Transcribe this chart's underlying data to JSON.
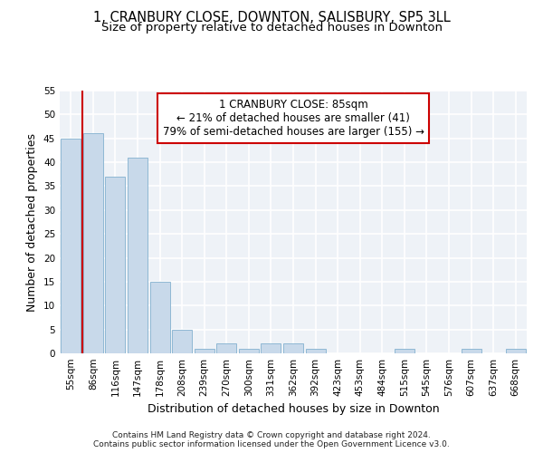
{
  "title": "1, CRANBURY CLOSE, DOWNTON, SALISBURY, SP5 3LL",
  "subtitle": "Size of property relative to detached houses in Downton",
  "xlabel": "Distribution of detached houses by size in Downton",
  "ylabel": "Number of detached properties",
  "categories": [
    "55sqm",
    "86sqm",
    "116sqm",
    "147sqm",
    "178sqm",
    "208sqm",
    "239sqm",
    "270sqm",
    "300sqm",
    "331sqm",
    "362sqm",
    "392sqm",
    "423sqm",
    "453sqm",
    "484sqm",
    "515sqm",
    "545sqm",
    "576sqm",
    "607sqm",
    "637sqm",
    "668sqm"
  ],
  "values": [
    45,
    46,
    37,
    41,
    15,
    5,
    1,
    2,
    1,
    2,
    2,
    1,
    0,
    0,
    0,
    1,
    0,
    0,
    1,
    0,
    1
  ],
  "bar_color": "#c8d9ea",
  "bar_edge_color": "#8fb8d4",
  "vline_color": "#cc0000",
  "annotation_text": "1 CRANBURY CLOSE: 85sqm\n← 21% of detached houses are smaller (41)\n79% of semi-detached houses are larger (155) →",
  "annotation_box_facecolor": "#ffffff",
  "annotation_box_edgecolor": "#cc0000",
  "ylim": [
    0,
    55
  ],
  "yticks": [
    0,
    5,
    10,
    15,
    20,
    25,
    30,
    35,
    40,
    45,
    50,
    55
  ],
  "background_color": "#eef2f7",
  "grid_color": "#ffffff",
  "footer": "Contains HM Land Registry data © Crown copyright and database right 2024.\nContains public sector information licensed under the Open Government Licence v3.0.",
  "title_fontsize": 10.5,
  "subtitle_fontsize": 9.5,
  "axis_label_fontsize": 9,
  "tick_fontsize": 7.5,
  "annotation_fontsize": 8.5,
  "footer_fontsize": 6.5
}
